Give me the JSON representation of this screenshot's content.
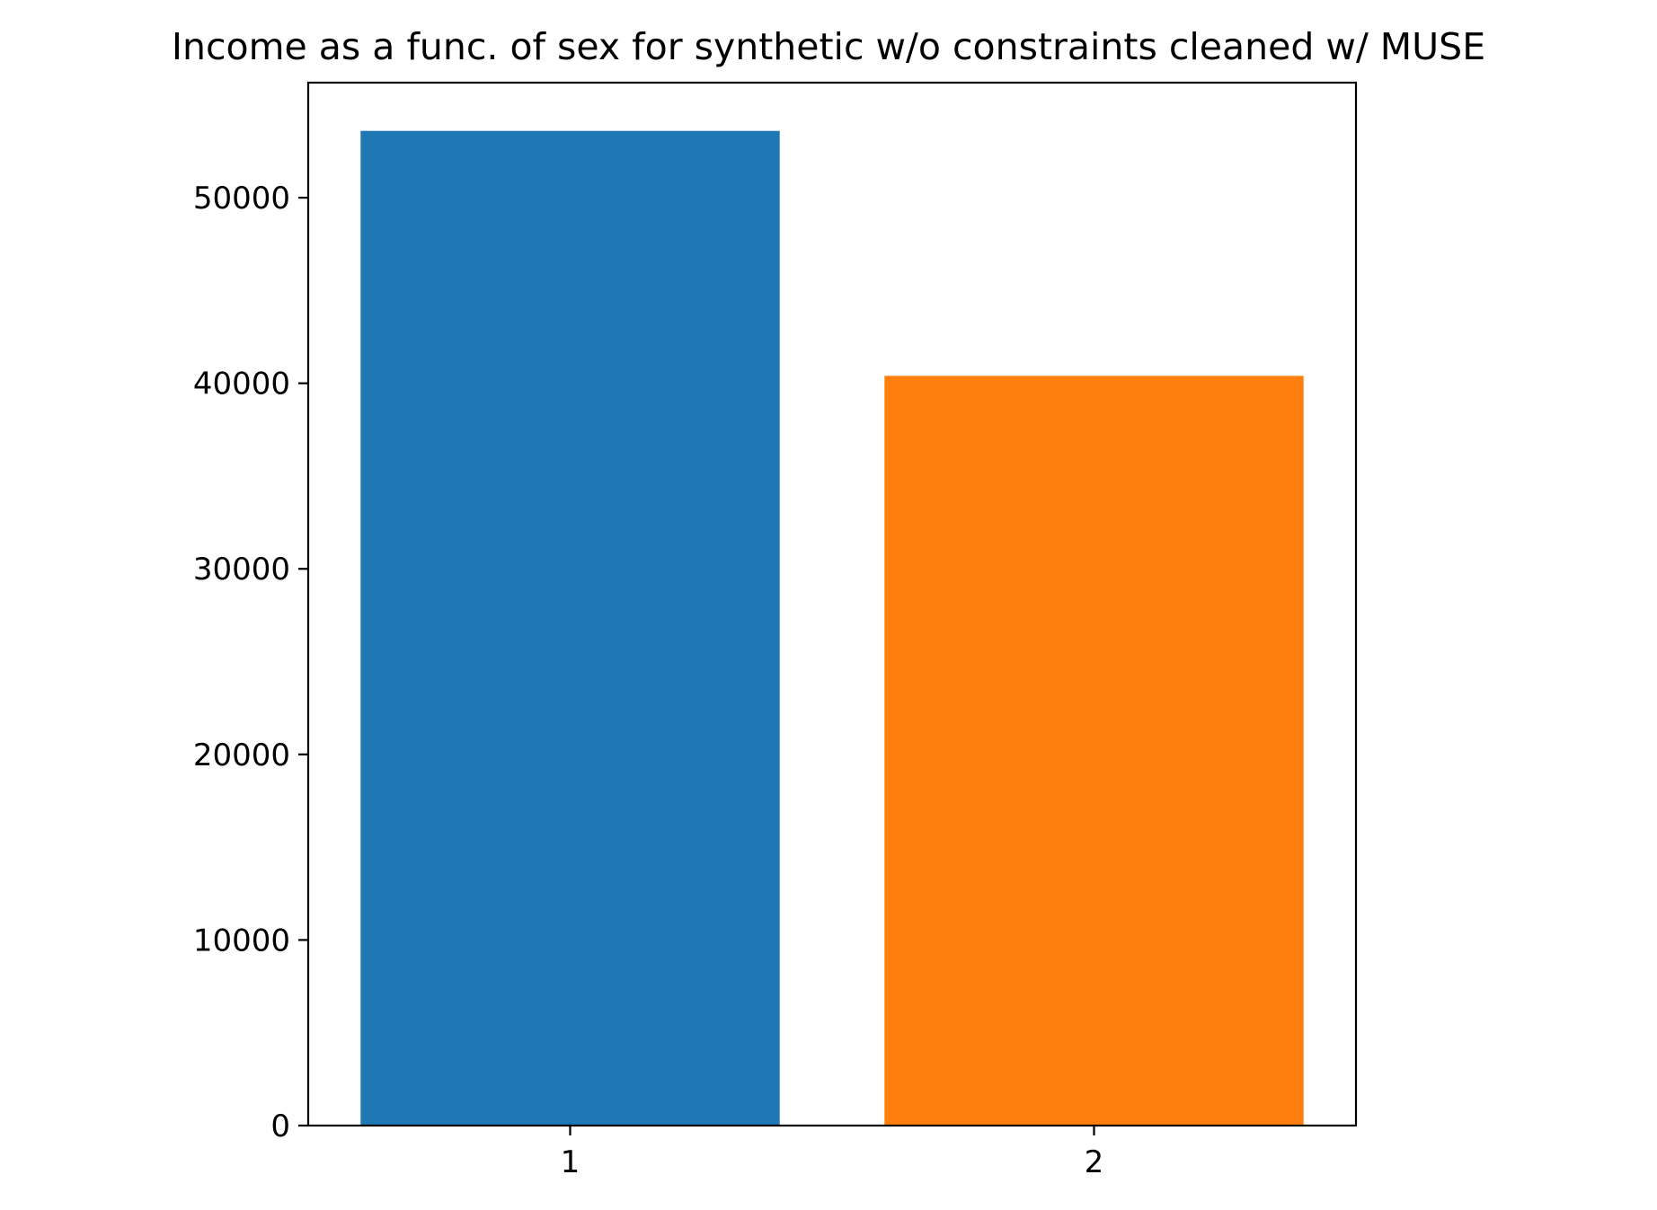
{
  "chart_data": {
    "type": "bar",
    "title": "Income as a func. of sex for synthetic w/o constraints cleaned w/ MUSE",
    "categories": [
      "1",
      "2"
    ],
    "values": [
      53600,
      40400
    ],
    "colors": [
      "#1f77b4",
      "#ff7f0e"
    ],
    "xlabel": "",
    "ylabel": "",
    "ylim": [
      0,
      56200
    ],
    "yticks": [
      0,
      10000,
      20000,
      30000,
      40000,
      50000
    ],
    "ytick_labels": [
      "0",
      "10000",
      "20000",
      "30000",
      "40000",
      "50000"
    ],
    "grid": false,
    "legend": "none"
  }
}
